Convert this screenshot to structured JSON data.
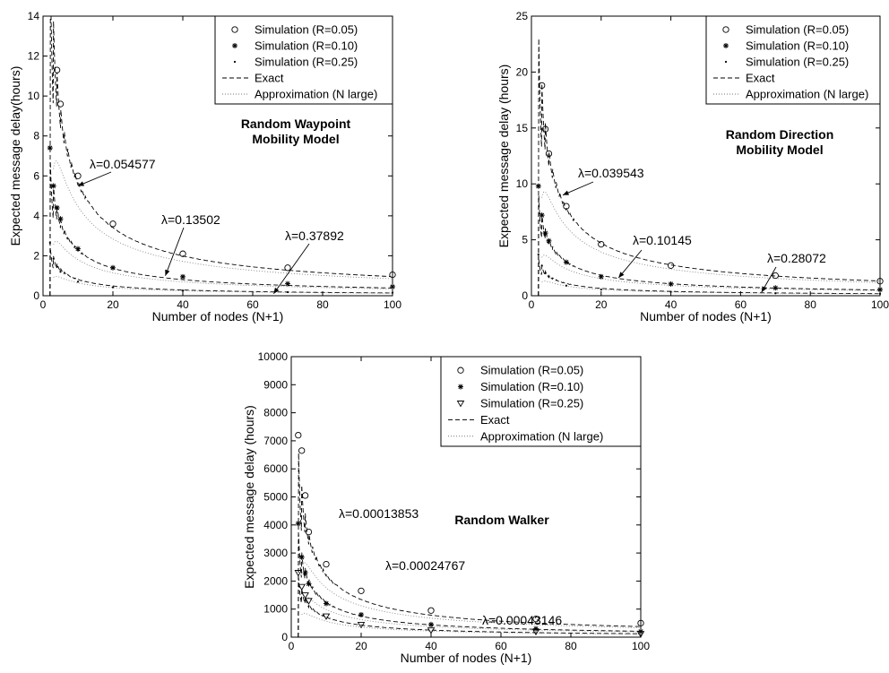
{
  "chart_data": [
    {
      "type": "line",
      "model_label": [
        "Random Waypoint",
        "Mobility Model"
      ],
      "xlabel": "Number of nodes (N+1)",
      "ylabel": "Expected message delay(hours)",
      "xlim": [
        0,
        100
      ],
      "ylim": [
        0,
        14
      ],
      "xticks": [
        0,
        20,
        40,
        60,
        80,
        100
      ],
      "yticks": [
        0,
        2,
        4,
        6,
        8,
        10,
        12,
        14
      ],
      "lambda_scale": 1,
      "lambdas": [
        0.054577,
        0.13502,
        0.37892
      ],
      "lambda_labels": [
        "λ=0.054577",
        "λ=0.13502",
        "λ=0.37892"
      ],
      "lambda_targets": [
        [
          10,
          5.5
        ],
        [
          35,
          1.0
        ],
        [
          66,
          0.1
        ]
      ],
      "legend": [
        "Simulation (R=0.05)",
        "Simulation (R=0.10)",
        "Simulation (R=0.25)",
        "Exact",
        "Approximation (N large)"
      ],
      "legend_position": "top-right",
      "grid": false,
      "series": [
        {
          "name": "Simulation (R=0.05)",
          "marker": "circle",
          "x": [
            4,
            5,
            10,
            20,
            40,
            70,
            100
          ],
          "y": [
            11.3,
            9.6,
            6.0,
            3.6,
            2.1,
            1.4,
            1.05
          ]
        },
        {
          "name": "Simulation (R=0.10)",
          "marker": "star",
          "x": [
            2,
            3,
            4,
            5,
            10,
            20,
            40,
            70,
            100
          ],
          "y": [
            7.4,
            5.5,
            4.4,
            3.85,
            2.35,
            1.4,
            0.95,
            0.6,
            0.45
          ]
        },
        {
          "name": "Simulation (R=0.25)",
          "marker": "dot",
          "x": [
            2,
            3,
            4,
            5,
            10,
            20,
            40,
            70,
            100
          ],
          "y": [
            2.65,
            1.85,
            1.45,
            1.2,
            0.7,
            0.42,
            0.26,
            0.18,
            0.15
          ]
        }
      ]
    },
    {
      "type": "line",
      "model_label": [
        "Random Direction",
        "Mobility Model"
      ],
      "xlabel": "Number of nodes (N+1)",
      "ylabel": "Expected message delay (hours)",
      "xlim": [
        0,
        100
      ],
      "ylim": [
        0,
        25
      ],
      "xticks": [
        0,
        20,
        40,
        60,
        80,
        100
      ],
      "yticks": [
        0,
        5,
        10,
        15,
        20,
        25
      ],
      "lambda_scale": 1,
      "lambdas": [
        0.039543,
        0.10145,
        0.28072
      ],
      "lambda_labels": [
        "λ=0.039543",
        "λ=0.10145",
        "λ=0.28072"
      ],
      "lambda_targets": [
        [
          9,
          9.0
        ],
        [
          25,
          1.6
        ],
        [
          66,
          0.3
        ]
      ],
      "legend": [
        "Simulation (R=0.05)",
        "Simulation (R=0.10)",
        "Simulation (R=0.25)",
        "Exact",
        "Approximation (N large)"
      ],
      "legend_position": "top-right",
      "grid": false,
      "series": [
        {
          "name": "Simulation (R=0.05)",
          "marker": "circle",
          "x": [
            3,
            4,
            5,
            10,
            20,
            40,
            70,
            100
          ],
          "y": [
            18.8,
            14.9,
            12.7,
            8.0,
            4.6,
            2.7,
            1.8,
            1.3
          ]
        },
        {
          "name": "Simulation (R=0.10)",
          "marker": "star",
          "x": [
            2,
            3,
            4,
            5,
            10,
            20,
            40,
            70,
            100
          ],
          "y": [
            9.8,
            7.2,
            5.6,
            4.9,
            3.0,
            1.7,
            1.05,
            0.7,
            0.55
          ]
        },
        {
          "name": "Simulation (R=0.25)",
          "marker": "dot",
          "x": [
            2,
            3,
            4,
            5,
            10,
            20,
            40,
            70,
            100
          ],
          "y": [
            3.7,
            2.7,
            2.0,
            1.7,
            0.9,
            0.55,
            0.35,
            0.22,
            0.17
          ]
        }
      ]
    },
    {
      "type": "line",
      "model_label": [
        "Random Walker"
      ],
      "xlabel": "Number of nodes (N+1)",
      "ylabel": "Expected message delay (hours)",
      "xlim": [
        0,
        100
      ],
      "ylim": [
        0,
        10000
      ],
      "xticks": [
        0,
        20,
        40,
        60,
        80,
        100
      ],
      "yticks": [
        0,
        1000,
        2000,
        3000,
        4000,
        5000,
        6000,
        7000,
        8000,
        9000,
        10000
      ],
      "lambda_scale": 1,
      "lambdas": [
        0.00013853,
        0.00024767,
        0.00043146
      ],
      "lambda_labels": [
        "λ=0.00013853",
        "λ=0.00024767",
        "λ=0.00043146"
      ],
      "lambda_targets": [],
      "legend": [
        "Simulation (R=0.05)",
        "Simulation (R=0.10)",
        "Simulation (R=0.25)",
        "Exact",
        "Approximation (N large)"
      ],
      "legend_position": "top-right",
      "grid": false,
      "series": [
        {
          "name": "Simulation (R=0.05)",
          "marker": "circle",
          "x": [
            2,
            3,
            4,
            5,
            10,
            20,
            40,
            70,
            100
          ],
          "y": [
            7200,
            6650,
            5050,
            3750,
            2600,
            1650,
            950,
            650,
            500
          ]
        },
        {
          "name": "Simulation (R=0.10)",
          "marker": "star",
          "x": [
            2,
            3,
            4,
            5,
            10,
            20,
            40,
            70,
            100
          ],
          "y": [
            4050,
            2850,
            2300,
            1900,
            1200,
            800,
            450,
            300,
            200
          ]
        },
        {
          "name": "Simulation (R=0.25)",
          "marker": "triangle",
          "x": [
            2,
            3,
            4,
            5,
            10,
            20,
            40,
            70,
            100
          ],
          "y": [
            2300,
            1800,
            1500,
            1300,
            750,
            450,
            250,
            200,
            120
          ]
        }
      ]
    }
  ]
}
